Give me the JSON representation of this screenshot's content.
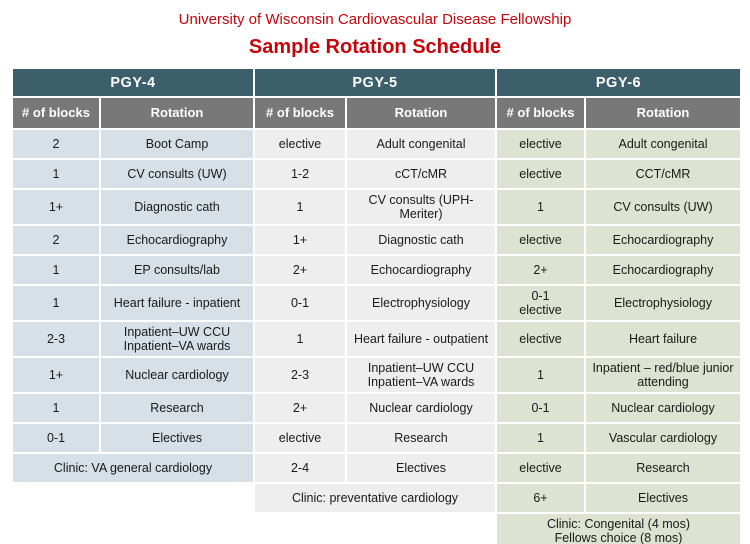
{
  "header": {
    "subtitle": "University of Wisconsin Cardiovascular Disease Fellowship",
    "title": "Sample Rotation Schedule"
  },
  "columns_label": {
    "blocks": "# of blocks",
    "rotation": "Rotation"
  },
  "pgy4": {
    "label": "PGY-4",
    "rows": [
      {
        "blocks": "2",
        "rotation": "Boot Camp"
      },
      {
        "blocks": "1",
        "rotation": "CV consults (UW)"
      },
      {
        "blocks": "1+",
        "rotation": "Diagnostic cath"
      },
      {
        "blocks": "2",
        "rotation": "Echocardiography"
      },
      {
        "blocks": "1",
        "rotation": "EP consults/lab"
      },
      {
        "blocks": "1",
        "rotation": "Heart failure - inpatient"
      },
      {
        "blocks": "2-3",
        "rotation": "Inpatient–UW CCU\nInpatient–VA wards"
      },
      {
        "blocks": "1+",
        "rotation": "Nuclear cardiology"
      },
      {
        "blocks": "1",
        "rotation": "Research"
      },
      {
        "blocks": "0-1",
        "rotation": "Electives"
      }
    ],
    "clinic": "Clinic: VA general cardiology"
  },
  "pgy5": {
    "label": "PGY-5",
    "rows": [
      {
        "blocks": "elective",
        "rotation": "Adult congenital"
      },
      {
        "blocks": "1-2",
        "rotation": "cCT/cMR"
      },
      {
        "blocks": "1",
        "rotation": "CV consults (UPH-\nMeriter)"
      },
      {
        "blocks": "1+",
        "rotation": "Diagnostic cath"
      },
      {
        "blocks": "2+",
        "rotation": "Echocardiography"
      },
      {
        "blocks": "0-1",
        "rotation": "Electrophysiology"
      },
      {
        "blocks": "1",
        "rotation": "Heart failure - outpatient"
      },
      {
        "blocks": "2-3",
        "rotation": "Inpatient–UW CCU\nInpatient–VA wards"
      },
      {
        "blocks": "2+",
        "rotation": "Nuclear cardiology"
      },
      {
        "blocks": "elective",
        "rotation": "Research"
      },
      {
        "blocks": "2-4",
        "rotation": "Electives"
      }
    ],
    "clinic": "Clinic: preventative cardiology"
  },
  "pgy6": {
    "label": "PGY-6",
    "rows": [
      {
        "blocks": "elective",
        "rotation": "Adult congenital"
      },
      {
        "blocks": "elective",
        "rotation": "CCT/cMR"
      },
      {
        "blocks": "1",
        "rotation": "CV consults (UW)"
      },
      {
        "blocks": "elective",
        "rotation": "Echocardiography"
      },
      {
        "blocks": "2+",
        "rotation": "Echocardiography"
      },
      {
        "blocks": "0-1\nelective",
        "rotation": "Electrophysiology"
      },
      {
        "blocks": "elective",
        "rotation": "Heart failure"
      },
      {
        "blocks": "1",
        "rotation": "Inpatient – red/blue junior\nattending"
      },
      {
        "blocks": "0-1",
        "rotation": "Nuclear cardiology"
      },
      {
        "blocks": "1",
        "rotation": "Vascular cardiology"
      },
      {
        "blocks": "elective",
        "rotation": "Research"
      },
      {
        "blocks": "6+",
        "rotation": "Electives"
      }
    ],
    "clinic": "Clinic: Congenital (4 mos)\nFellows choice (8 mos)"
  }
}
